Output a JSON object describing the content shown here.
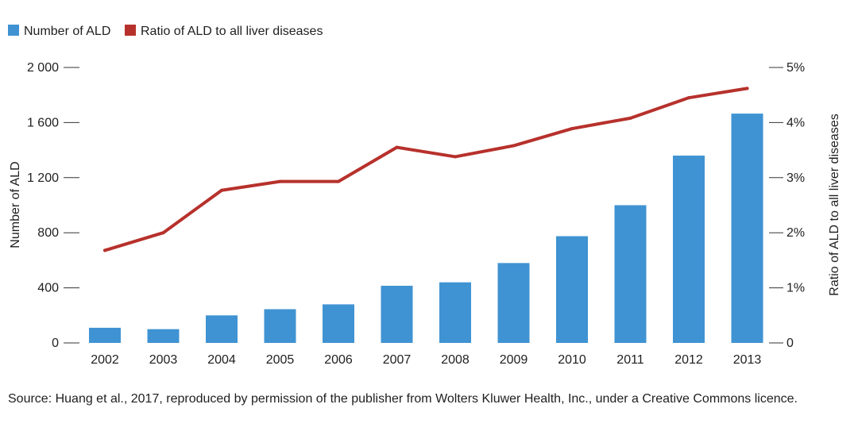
{
  "chart_data": {
    "type": "bar",
    "categories": [
      "2002",
      "2003",
      "2004",
      "2005",
      "2006",
      "2007",
      "2008",
      "2009",
      "2010",
      "2011",
      "2012",
      "2013"
    ],
    "series": [
      {
        "name": "Number of ALD",
        "type": "bar",
        "axis": "left",
        "color": "#3f93d2",
        "values": [
          110,
          100,
          200,
          245,
          280,
          415,
          440,
          580,
          775,
          1000,
          1360,
          1665
        ]
      },
      {
        "name": "Ratio of ALD to all liver diseases",
        "type": "line",
        "axis": "right",
        "color": "#b7312c",
        "values": [
          1.68,
          2.0,
          2.77,
          2.93,
          2.93,
          3.55,
          3.38,
          3.58,
          3.89,
          4.08,
          4.45,
          4.62
        ]
      }
    ],
    "left_axis": {
      "label": "Number of ALD",
      "ylim": [
        0,
        2000
      ],
      "ticks": [
        0,
        400,
        800,
        1200,
        1600,
        2000
      ],
      "tick_labels": [
        "0",
        "400",
        "800",
        "1 200",
        "1 600",
        "2 000"
      ]
    },
    "right_axis": {
      "label": "Ratio of ALD to all liver diseases",
      "ylim": [
        0,
        5
      ],
      "ticks": [
        0,
        1,
        2,
        3,
        4,
        5
      ],
      "tick_labels": [
        "0",
        "1%",
        "2%",
        "3%",
        "4%",
        "5%"
      ]
    },
    "legend_position": "top-left",
    "grid": false
  },
  "source_note": "Source: Huang et al., 2017, reproduced by permission of the publisher from Wolters Kluwer Health, Inc., under a Creative Commons licence."
}
